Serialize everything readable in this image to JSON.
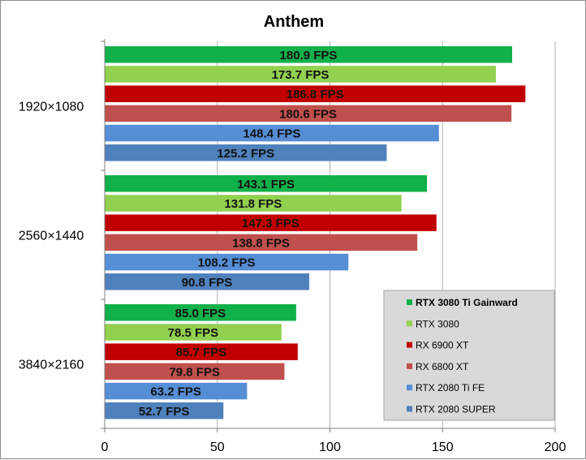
{
  "chart_data": {
    "type": "bar",
    "orientation": "horizontal",
    "title": "Anthem",
    "categories": [
      "1920×1080",
      "2560×1440",
      "3840×2160"
    ],
    "series": [
      {
        "name": "RTX 3080 Ti Gainward",
        "color": "#10b04a",
        "values": [
          180.9,
          143.1,
          85.0
        ],
        "labels": [
          "180.9 FPS",
          "143.1 FPS",
          "85.0 FPS"
        ]
      },
      {
        "name": "RTX 3080",
        "color": "#92d050",
        "values": [
          173.7,
          131.8,
          78.5
        ],
        "labels": [
          "173.7 FPS",
          "131.8 FPS",
          "78.5 FPS"
        ]
      },
      {
        "name": "RX 6900 XT",
        "color": "#c00000",
        "values": [
          186.8,
          147.3,
          85.7
        ],
        "labels": [
          "186.8 FPS",
          "147.3 FPS",
          "85.7 FPS"
        ]
      },
      {
        "name": "RX 6800 XT",
        "color": "#c0504d",
        "values": [
          180.6,
          138.8,
          79.8
        ],
        "labels": [
          "180.6 FPS",
          "138.8 FPS",
          "79.8 FPS"
        ]
      },
      {
        "name": "RTX 2080 Ti FE",
        "color": "#558ed5",
        "values": [
          148.4,
          108.2,
          63.2
        ],
        "labels": [
          "148.4 FPS",
          "108.2 FPS",
          "63.2 FPS"
        ]
      },
      {
        "name": "RTX 2080 SUPER",
        "color": "#4f81bd",
        "values": [
          125.2,
          90.8,
          52.7
        ],
        "labels": [
          "125.2 FPS",
          "90.8 FPS",
          "52.7 FPS"
        ]
      }
    ],
    "xlim": [
      0,
      200
    ],
    "xticks": [
      0,
      50,
      100,
      150,
      200
    ],
    "grid": true,
    "legend_position": "bottom-right"
  }
}
